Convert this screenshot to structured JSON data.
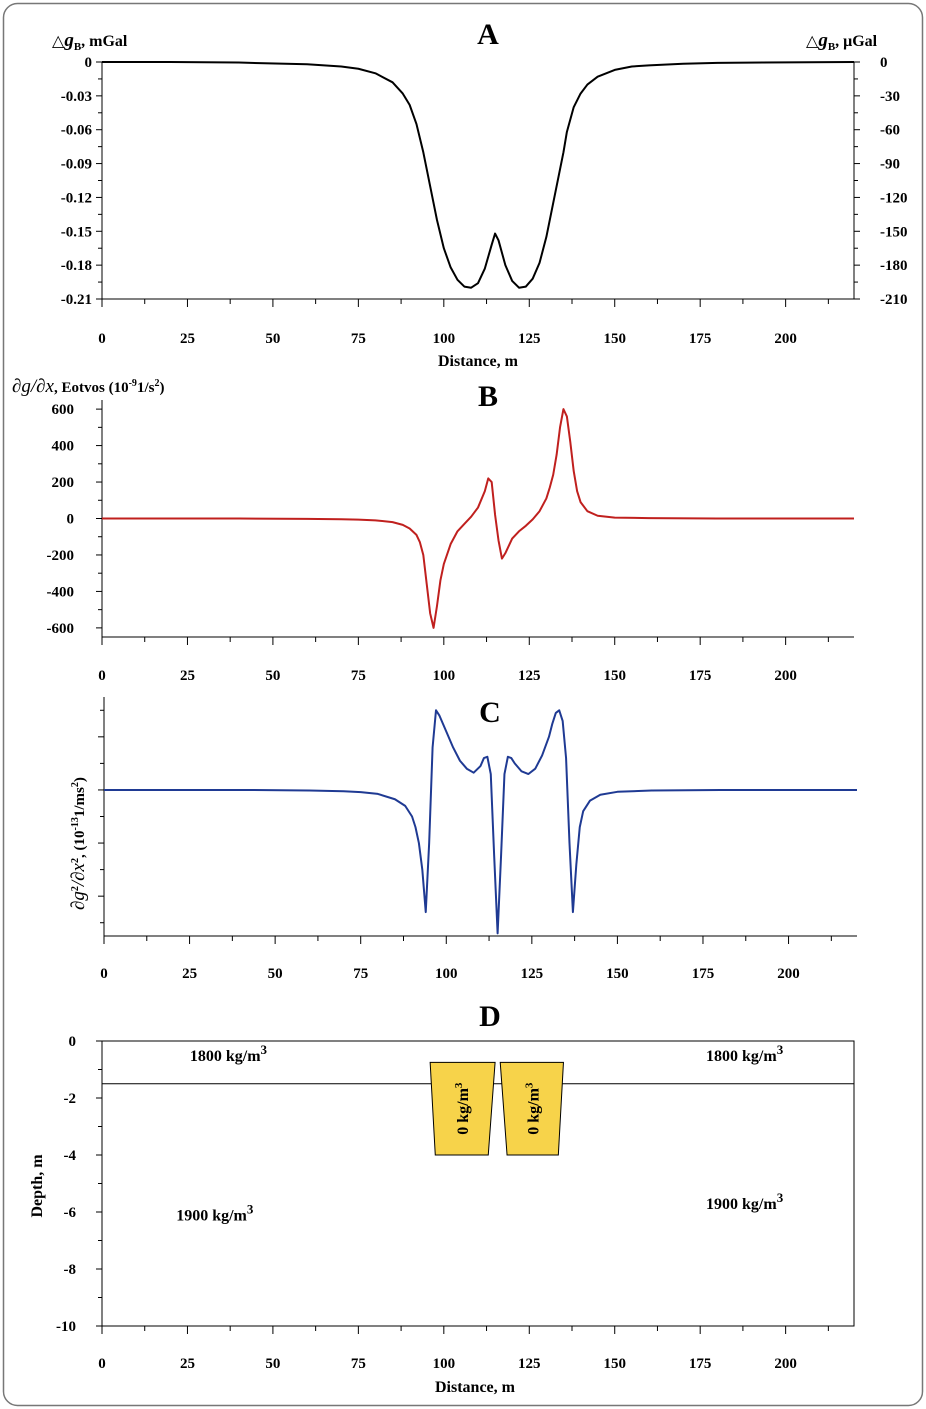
{
  "chart_data": [
    {
      "panel": "A",
      "type": "line",
      "title": "A",
      "xlabel": "Distance, m",
      "ylabel_left": "△g_B, mGal",
      "ylabel_left_parts": {
        "sym": "△",
        "var": "g",
        "sub": "B",
        "unit": ", mGal"
      },
      "ylabel_right": "△g_B, μGal",
      "ylabel_right_parts": {
        "sym": "△",
        "var": "g",
        "sub": "B",
        "unit": ", μGal"
      },
      "xlim": [
        0,
        220
      ],
      "ylim": [
        -0.21,
        0
      ],
      "xticks": [
        "0",
        "25",
        "50",
        "75",
        "100",
        "125",
        "150",
        "175",
        "200"
      ],
      "yticks_left": [
        "0",
        "-0.03",
        "-0.06",
        "-0.09",
        "-0.12",
        "-0.15",
        "-0.18",
        "-0.21"
      ],
      "yticks_right": [
        "0",
        "-30",
        "-60",
        "-90",
        "-120",
        "-150",
        "-180",
        "-210"
      ],
      "series": [
        {
          "color": "#000000",
          "x": [
            0,
            20,
            40,
            60,
            70,
            75,
            80,
            85,
            88,
            90,
            92,
            94,
            95,
            96,
            97,
            98,
            100,
            102,
            104,
            106,
            108,
            110,
            112,
            114,
            115,
            116,
            118,
            120,
            122,
            124,
            126,
            128,
            130,
            132,
            134,
            135,
            136,
            138,
            140,
            142,
            145,
            150,
            155,
            160,
            170,
            180,
            200,
            220
          ],
          "y": [
            0,
            0,
            -0.0005,
            -0.002,
            -0.004,
            -0.006,
            -0.01,
            -0.018,
            -0.028,
            -0.038,
            -0.055,
            -0.08,
            -0.095,
            -0.11,
            -0.125,
            -0.14,
            -0.165,
            -0.182,
            -0.193,
            -0.199,
            -0.2,
            -0.196,
            -0.183,
            -0.162,
            -0.152,
            -0.158,
            -0.18,
            -0.194,
            -0.2,
            -0.199,
            -0.192,
            -0.178,
            -0.155,
            -0.125,
            -0.095,
            -0.08,
            -0.062,
            -0.04,
            -0.028,
            -0.02,
            -0.013,
            -0.007,
            -0.004,
            -0.003,
            -0.0015,
            -0.0008,
            -0.0003,
            0
          ]
        }
      ]
    },
    {
      "panel": "B",
      "type": "line",
      "title": "B",
      "ylabel": "∂g/∂x, Eotvos (10⁻⁹1/s²)",
      "ylabel_parts": {
        "main": "∂g/∂x",
        "rest": ", Eotvos (10",
        "sup1": "-9",
        "mid": "1/s",
        "sup2": "2",
        "end": ")"
      },
      "xlim": [
        0,
        220
      ],
      "ylim": [
        -650,
        650
      ],
      "xticks": [
        "0",
        "25",
        "50",
        "75",
        "100",
        "125",
        "150",
        "175",
        "200"
      ],
      "yticks": [
        "600",
        "400",
        "200",
        "0",
        "-200",
        "-400",
        "-600"
      ],
      "series": [
        {
          "color": "#c0201e",
          "x": [
            0,
            20,
            40,
            60,
            70,
            75,
            80,
            85,
            88,
            90,
            92,
            93,
            94,
            95,
            96,
            97,
            98,
            99,
            100,
            102,
            104,
            106,
            108,
            110,
            112,
            113,
            114,
            115,
            116,
            117,
            118,
            120,
            122,
            124,
            126,
            128,
            130,
            131,
            132,
            133,
            134,
            135,
            136,
            137,
            138,
            139,
            140,
            142,
            145,
            150,
            160,
            180,
            200,
            220
          ],
          "y": [
            0,
            0,
            0,
            -2,
            -4,
            -6,
            -10,
            -20,
            -35,
            -55,
            -90,
            -130,
            -200,
            -360,
            -520,
            -600,
            -480,
            -340,
            -250,
            -140,
            -70,
            -30,
            10,
            60,
            150,
            220,
            200,
            20,
            -120,
            -220,
            -190,
            -110,
            -70,
            -40,
            -5,
            40,
            110,
            170,
            240,
            350,
            500,
            600,
            560,
            420,
            260,
            150,
            90,
            40,
            15,
            5,
            2,
            0,
            0,
            0
          ]
        }
      ]
    },
    {
      "panel": "C",
      "type": "line",
      "title": "C",
      "ylabel": "∂g²/∂x², (10⁻¹³1/ms²)",
      "ylabel_parts": {
        "main": "∂g",
        "sup0": "2",
        "mid0": "/∂x",
        "sup1": "2",
        "rest": ", (10",
        "sup2": "-13",
        "mid": "1/ms",
        "sup3": "2",
        "end": ")"
      },
      "xlim": [
        0,
        220
      ],
      "ylim": [
        -5.5,
        3.5
      ],
      "xticks": [
        "0",
        "25",
        "50",
        "75",
        "100",
        "125",
        "150",
        "175",
        "200"
      ],
      "series": [
        {
          "color": "#1f3a93",
          "x": [
            0,
            20,
            40,
            60,
            70,
            75,
            80,
            85,
            88,
            90,
            91,
            92,
            93,
            94,
            95,
            96,
            97,
            98,
            100,
            102,
            104,
            106,
            108,
            110,
            111,
            112,
            113,
            114,
            115,
            116,
            117,
            118,
            119,
            120,
            122,
            124,
            126,
            128,
            130,
            131,
            132,
            133,
            134,
            135,
            136,
            137,
            138,
            139,
            140,
            142,
            145,
            150,
            160,
            180,
            200,
            220
          ],
          "y": [
            0,
            0,
            0,
            -0.02,
            -0.05,
            -0.08,
            -0.15,
            -0.35,
            -0.6,
            -1.0,
            -1.4,
            -2.0,
            -3.0,
            -4.6,
            -2.0,
            1.6,
            3.0,
            2.8,
            2.2,
            1.6,
            1.1,
            0.8,
            0.65,
            0.9,
            1.2,
            1.25,
            0.6,
            -2.5,
            -5.4,
            -2.5,
            0.6,
            1.25,
            1.2,
            1.0,
            0.7,
            0.6,
            0.8,
            1.3,
            2.0,
            2.5,
            2.9,
            3.0,
            2.6,
            1.2,
            -2.0,
            -4.6,
            -2.8,
            -1.4,
            -0.8,
            -0.4,
            -0.18,
            -0.07,
            -0.02,
            0,
            0,
            0
          ]
        }
      ]
    },
    {
      "panel": "D",
      "type": "diagram",
      "title": "D",
      "xlabel": "Distance, m",
      "ylabel": "Depth, m",
      "xlim": [
        0,
        220
      ],
      "ylim": [
        -10,
        0
      ],
      "xticks": [
        "0",
        "25",
        "50",
        "75",
        "100",
        "125",
        "150",
        "175",
        "200"
      ],
      "yticks": [
        "0",
        "-2",
        "-4",
        "-6",
        "-8",
        "-10"
      ],
      "layer_boundary_depth": -1.5,
      "labels": [
        {
          "id": "top-left",
          "value": "1800 kg/m",
          "sup": "3",
          "x": 37,
          "depth": -0.7
        },
        {
          "id": "top-right",
          "value": "1800 kg/m",
          "sup": "3",
          "x": 188,
          "depth": -0.7
        },
        {
          "id": "bottom-left",
          "value": "1900 kg/m",
          "sup": "3",
          "x": 33,
          "depth": -6.3
        },
        {
          "id": "bottom-right",
          "value": "1900 kg/m",
          "sup": "3",
          "x": 188,
          "depth": -5.9
        }
      ],
      "bodies": [
        {
          "name": "left-cavity",
          "label": "0 kg/m",
          "sup": "3",
          "fill": "#f7d34a",
          "top": [
            96,
            115
          ],
          "bottom": [
            97.5,
            113
          ],
          "depth_top": -0.75,
          "depth_bottom": -4.0
        },
        {
          "name": "right-cavity",
          "label": "0 kg/m",
          "sup": "3",
          "fill": "#f7d34a",
          "top": [
            116.5,
            135
          ],
          "bottom": [
            118.5,
            133.5
          ],
          "depth_top": -0.75,
          "depth_bottom": -4.0
        }
      ]
    }
  ]
}
